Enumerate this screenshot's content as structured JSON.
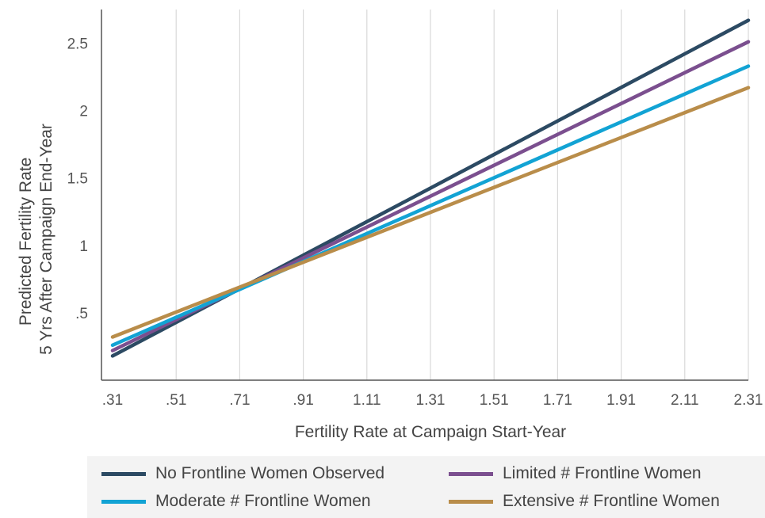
{
  "chart_data": {
    "type": "line",
    "xlabel": "Fertility Rate at Campaign Start-Year",
    "ylabel_lines": [
      "Predicted Fertility Rate",
      "5 Yrs After Campaign End-Year"
    ],
    "x_ticks": [
      ".31",
      ".51",
      ".71",
      ".91",
      "1.11",
      "1.31",
      "1.51",
      "1.71",
      "1.91",
      "2.11",
      "2.31"
    ],
    "y_ticks": [
      ".5",
      "1",
      "1.5",
      "2",
      "2.5"
    ],
    "xlim": [
      0.31,
      2.31
    ],
    "ylim": [
      0.0,
      2.75
    ],
    "grid": "vertical",
    "legend_position": "bottom",
    "series": [
      {
        "name": "No Frontline Women Observed",
        "color": "#2c4a63",
        "x": [
          0.31,
          2.31
        ],
        "y": [
          0.18,
          2.67
        ]
      },
      {
        "name": "Limited # Frontline Women",
        "color": "#7b4f8f",
        "x": [
          0.31,
          2.31
        ],
        "y": [
          0.22,
          2.51
        ]
      },
      {
        "name": "Moderate # Frontline Women",
        "color": "#12a3d4",
        "x": [
          0.31,
          2.31
        ],
        "y": [
          0.26,
          2.33
        ]
      },
      {
        "name": "Extensive # Frontline Women",
        "color": "#b98d4a",
        "x": [
          0.31,
          2.31
        ],
        "y": [
          0.32,
          2.17
        ]
      }
    ]
  }
}
